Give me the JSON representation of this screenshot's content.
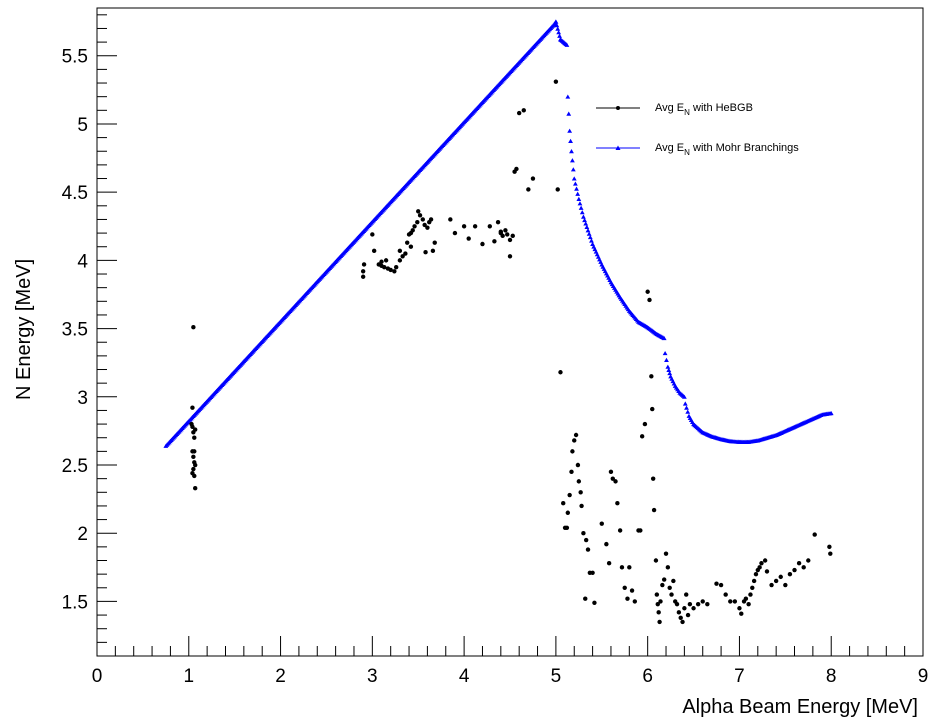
{
  "chart_data": {
    "type": "scatter",
    "xlabel": "Alpha Beam Energy [MeV]",
    "ylabel": "N Energy [MeV]",
    "xlim": [
      0,
      9
    ],
    "ylim": [
      1.1,
      5.85
    ],
    "x_ticks": [
      "0",
      "1",
      "2",
      "3",
      "4",
      "5",
      "6",
      "7",
      "8",
      "9"
    ],
    "y_ticks": [
      "1.5",
      "2",
      "2.5",
      "3",
      "3.5",
      "4",
      "4.5",
      "5",
      "5.5"
    ],
    "grid": false,
    "legend_position": "top-right",
    "series": [
      {
        "name_main": "Avg E",
        "name_sub": "N",
        "name_rest": " with HeBGB",
        "color": "#000000",
        "marker": "circle",
        "points": [
          [
            1.05,
            3.51
          ],
          [
            1.04,
            2.92
          ],
          [
            1.03,
            2.8
          ],
          [
            1.04,
            2.78
          ],
          [
            1.05,
            2.74
          ],
          [
            1.06,
            2.7
          ],
          [
            1.07,
            2.76
          ],
          [
            1.04,
            2.6
          ],
          [
            1.05,
            2.56
          ],
          [
            1.06,
            2.52
          ],
          [
            1.05,
            2.47
          ],
          [
            1.04,
            2.44
          ],
          [
            1.06,
            2.42
          ],
          [
            1.07,
            2.33
          ],
          [
            1.06,
            2.6
          ],
          [
            1.07,
            2.5
          ],
          [
            2.9,
            3.88
          ],
          [
            2.9,
            3.92
          ],
          [
            2.91,
            3.97
          ],
          [
            3.0,
            4.19
          ],
          [
            3.02,
            4.07
          ],
          [
            3.07,
            3.97
          ],
          [
            3.1,
            3.96
          ],
          [
            3.13,
            3.95
          ],
          [
            3.17,
            3.94
          ],
          [
            3.2,
            3.93
          ],
          [
            3.24,
            3.92
          ],
          [
            3.26,
            3.95
          ],
          [
            3.3,
            4.0
          ],
          [
            3.33,
            4.03
          ],
          [
            3.36,
            4.05
          ],
          [
            3.38,
            4.13
          ],
          [
            3.4,
            4.19
          ],
          [
            3.42,
            4.2
          ],
          [
            3.44,
            4.22
          ],
          [
            3.46,
            4.25
          ],
          [
            3.49,
            4.28
          ],
          [
            3.52,
            4.33
          ],
          [
            3.55,
            4.3
          ],
          [
            3.57,
            4.26
          ],
          [
            3.6,
            4.24
          ],
          [
            3.62,
            4.28
          ],
          [
            3.64,
            4.3
          ],
          [
            3.58,
            4.06
          ],
          [
            3.68,
            4.13
          ],
          [
            3.66,
            4.07
          ],
          [
            3.3,
            4.07
          ],
          [
            3.1,
            3.99
          ],
          [
            3.15,
            4.0
          ],
          [
            3.42,
            4.1
          ],
          [
            3.5,
            4.36
          ],
          [
            3.85,
            4.3
          ],
          [
            3.9,
            4.2
          ],
          [
            4.0,
            4.25
          ],
          [
            4.05,
            4.16
          ],
          [
            4.12,
            4.25
          ],
          [
            4.2,
            4.12
          ],
          [
            4.28,
            4.25
          ],
          [
            4.33,
            4.14
          ],
          [
            4.37,
            4.28
          ],
          [
            4.4,
            4.2
          ],
          [
            4.42,
            4.18
          ],
          [
            4.45,
            4.22
          ],
          [
            4.47,
            4.19
          ],
          [
            4.5,
            4.15
          ],
          [
            4.5,
            4.03
          ],
          [
            4.53,
            4.18
          ],
          [
            4.55,
            4.65
          ],
          [
            4.57,
            4.67
          ],
          [
            4.6,
            5.08
          ],
          [
            4.65,
            5.1
          ],
          [
            4.7,
            4.52
          ],
          [
            4.75,
            4.6
          ],
          [
            4.4,
            4.21
          ],
          [
            5.0,
            5.31
          ],
          [
            5.02,
            4.52
          ],
          [
            5.05,
            3.18
          ],
          [
            5.08,
            2.22
          ],
          [
            5.1,
            2.04
          ],
          [
            5.12,
            2.04
          ],
          [
            5.13,
            2.15
          ],
          [
            5.15,
            2.28
          ],
          [
            5.17,
            2.45
          ],
          [
            5.18,
            2.6
          ],
          [
            5.2,
            2.68
          ],
          [
            5.22,
            2.72
          ],
          [
            5.24,
            2.5
          ],
          [
            5.25,
            2.38
          ],
          [
            5.27,
            2.3
          ],
          [
            5.28,
            2.2
          ],
          [
            5.3,
            2.0
          ],
          [
            5.33,
            1.95
          ],
          [
            5.35,
            1.88
          ],
          [
            5.37,
            1.71
          ],
          [
            5.4,
            1.71
          ],
          [
            5.42,
            1.49
          ],
          [
            5.32,
            1.52
          ],
          [
            5.5,
            2.07
          ],
          [
            5.55,
            1.92
          ],
          [
            5.58,
            1.78
          ],
          [
            5.6,
            2.45
          ],
          [
            5.62,
            2.4
          ],
          [
            5.65,
            2.38
          ],
          [
            5.67,
            2.22
          ],
          [
            5.7,
            2.02
          ],
          [
            5.72,
            1.75
          ],
          [
            5.75,
            1.6
          ],
          [
            5.78,
            1.52
          ],
          [
            5.8,
            1.75
          ],
          [
            5.83,
            1.58
          ],
          [
            5.86,
            1.5
          ],
          [
            5.9,
            2.02
          ],
          [
            5.92,
            2.02
          ],
          [
            5.94,
            2.71
          ],
          [
            5.97,
            2.8
          ],
          [
            6.0,
            3.77
          ],
          [
            6.02,
            3.71
          ],
          [
            6.04,
            3.15
          ],
          [
            6.05,
            2.91
          ],
          [
            6.06,
            2.4
          ],
          [
            6.07,
            2.17
          ],
          [
            6.09,
            1.8
          ],
          [
            6.1,
            1.55
          ],
          [
            6.11,
            1.48
          ],
          [
            6.12,
            1.42
          ],
          [
            6.13,
            1.35
          ],
          [
            6.14,
            1.5
          ],
          [
            6.16,
            1.62
          ],
          [
            6.18,
            1.66
          ],
          [
            6.2,
            1.85
          ],
          [
            6.22,
            1.75
          ],
          [
            6.24,
            1.6
          ],
          [
            6.26,
            1.55
          ],
          [
            6.28,
            1.65
          ],
          [
            6.3,
            1.5
          ],
          [
            6.32,
            1.48
          ],
          [
            6.34,
            1.42
          ],
          [
            6.36,
            1.38
          ],
          [
            6.38,
            1.35
          ],
          [
            6.4,
            1.45
          ],
          [
            6.42,
            1.55
          ],
          [
            6.44,
            1.4
          ],
          [
            6.46,
            1.48
          ],
          [
            6.5,
            1.45
          ],
          [
            6.55,
            1.48
          ],
          [
            6.6,
            1.5
          ],
          [
            6.65,
            1.48
          ],
          [
            6.75,
            1.63
          ],
          [
            6.8,
            1.62
          ],
          [
            6.85,
            1.55
          ],
          [
            6.9,
            1.5
          ],
          [
            6.95,
            1.5
          ],
          [
            7.0,
            1.45
          ],
          [
            7.02,
            1.41
          ],
          [
            7.05,
            1.5
          ],
          [
            7.07,
            1.52
          ],
          [
            7.1,
            1.48
          ],
          [
            7.12,
            1.55
          ],
          [
            7.14,
            1.6
          ],
          [
            7.16,
            1.65
          ],
          [
            7.18,
            1.7
          ],
          [
            7.2,
            1.73
          ],
          [
            7.22,
            1.75
          ],
          [
            7.24,
            1.78
          ],
          [
            7.28,
            1.8
          ],
          [
            7.3,
            1.72
          ],
          [
            7.35,
            1.62
          ],
          [
            7.4,
            1.65
          ],
          [
            7.45,
            1.68
          ],
          [
            7.5,
            1.62
          ],
          [
            7.55,
            1.7
          ],
          [
            7.6,
            1.73
          ],
          [
            7.65,
            1.78
          ],
          [
            7.7,
            1.75
          ],
          [
            7.75,
            1.8
          ],
          [
            7.82,
            1.99
          ],
          [
            7.98,
            1.9
          ],
          [
            7.99,
            1.85
          ]
        ]
      },
      {
        "name_main": "Avg E",
        "name_sub": "N",
        "name_rest": " with  Mohr Branchings",
        "color": "#0000ff",
        "marker": "triangle",
        "segments": [
          {
            "from": [
              0.75,
              2.64
            ],
            "to": [
              4.98,
              5.73
            ],
            "step": 0.012
          },
          {
            "from": [
              4.98,
              5.73
            ],
            "to": [
              5.0,
              5.75
            ],
            "step": 0.006
          },
          {
            "from": [
              5.0,
              5.75
            ],
            "to": [
              5.05,
              5.62
            ],
            "step": 0.01
          },
          {
            "from": [
              5.05,
              5.62
            ],
            "to": [
              5.12,
              5.58
            ],
            "step": 0.01
          }
        ],
        "curve_points": [
          [
            5.13,
            5.2
          ],
          [
            5.15,
            4.95
          ],
          [
            5.17,
            4.8
          ],
          [
            5.2,
            4.6
          ],
          [
            5.25,
            4.45
          ],
          [
            5.3,
            4.32
          ],
          [
            5.35,
            4.22
          ],
          [
            5.4,
            4.12
          ],
          [
            5.5,
            3.97
          ],
          [
            5.6,
            3.84
          ],
          [
            5.7,
            3.73
          ],
          [
            5.8,
            3.63
          ],
          [
            5.9,
            3.55
          ],
          [
            6.0,
            3.51
          ],
          [
            6.1,
            3.46
          ],
          [
            6.18,
            3.43
          ]
        ],
        "curve2_points": [
          [
            6.19,
            3.32
          ],
          [
            6.22,
            3.22
          ],
          [
            6.25,
            3.15
          ],
          [
            6.3,
            3.08
          ],
          [
            6.35,
            3.03
          ],
          [
            6.4,
            3.0
          ],
          [
            6.41,
            2.95
          ],
          [
            6.45,
            2.86
          ],
          [
            6.5,
            2.8
          ],
          [
            6.6,
            2.74
          ],
          [
            6.7,
            2.71
          ],
          [
            6.8,
            2.69
          ],
          [
            6.9,
            2.675
          ],
          [
            7.0,
            2.67
          ],
          [
            7.1,
            2.67
          ],
          [
            7.2,
            2.68
          ],
          [
            7.3,
            2.7
          ],
          [
            7.4,
            2.72
          ],
          [
            7.5,
            2.75
          ],
          [
            7.6,
            2.78
          ],
          [
            7.7,
            2.81
          ],
          [
            7.8,
            2.84
          ],
          [
            7.9,
            2.87
          ],
          [
            8.0,
            2.88
          ]
        ]
      }
    ]
  }
}
